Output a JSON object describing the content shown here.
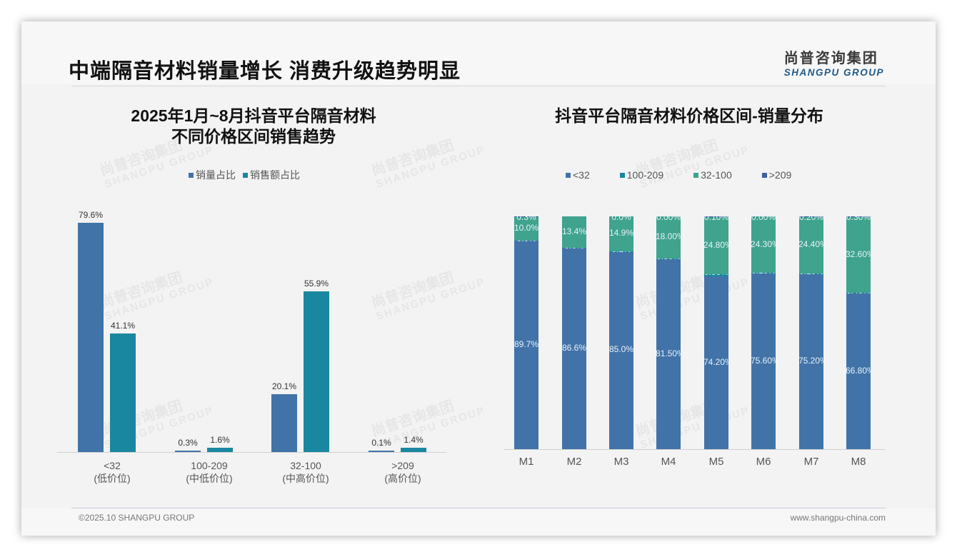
{
  "header": {
    "title": "中端隔音材料销量增长 消费升级趋势明显",
    "logo_cn": "尚普咨询集团",
    "logo_en": "SHANGPU GROUP"
  },
  "footer": {
    "left": "©2025.10 SHANGPU GROUP",
    "right": "www.shangpu-china.com"
  },
  "watermark": {
    "cn": "尚普咨询集团",
    "en": "SHANGPU GROUP"
  },
  "colors": {
    "blue": "#4173a8",
    "teal": "#1a87a0",
    "green": "#3fa38d",
    "navy": "#3e5fa0"
  },
  "chart_data": [
    {
      "type": "bar",
      "title": "2025年1月~8月抖音平台隔音材料 不同价格区间销售趋势",
      "title_lines": [
        "2025年1月~8月抖音平台隔音材料",
        "不同价格区间销售趋势"
      ],
      "categories": [
        "<32",
        "100-209",
        "32-100",
        ">209"
      ],
      "category_sublabels": [
        "(低价位)",
        "(中低价位)",
        "(中高价位)",
        "(高价位)"
      ],
      "series": [
        {
          "name": "销量占比",
          "values": [
            79.6,
            0.3,
            20.1,
            0.1
          ],
          "labels": [
            "79.6%",
            "0.3%",
            "20.1%",
            "0.1%"
          ],
          "color": "#4173a8"
        },
        {
          "name": "销售额占比",
          "values": [
            41.1,
            1.6,
            55.9,
            1.4
          ],
          "labels": [
            "41.1%",
            "1.6%",
            "55.9%",
            "1.4%"
          ],
          "color": "#1a87a0"
        }
      ],
      "legend_position": "top",
      "grid": false,
      "ylim": [
        0,
        80
      ]
    },
    {
      "type": "bar",
      "stacked": true,
      "title": "抖音平台隔音材料价格区间-销量分布",
      "categories": [
        "M1",
        "M2",
        "M3",
        "M4",
        "M5",
        "M6",
        "M7",
        "M8"
      ],
      "series": [
        {
          "name": "<32",
          "values": [
            89.7,
            86.6,
            85.0,
            81.5,
            74.2,
            75.6,
            75.2,
            66.8
          ],
          "labels": [
            "89.7%",
            "86.6%",
            "85.0%",
            "81.50%",
            "74.20%",
            "75.60%",
            "75.20%",
            "66.80%"
          ],
          "color": "#4173a8"
        },
        {
          "name": "100-209",
          "values": [
            0.0,
            0.0,
            0.1,
            0.5,
            0.9,
            0.1,
            0.1,
            0.4
          ],
          "labels": [
            "0.0%",
            "0.0%",
            "0.1%",
            "0.50%",
            "0.90%",
            "0.10%",
            "0.10%",
            "0.40%"
          ],
          "color": "#1a87a0"
        },
        {
          "name": "32-100",
          "values": [
            10.0,
            13.4,
            14.9,
            18.0,
            24.8,
            24.3,
            24.4,
            32.6
          ],
          "labels": [
            "10.0%",
            "13.4%",
            "14.9%",
            "18.00%",
            "24.80%",
            "24.30%",
            "24.40%",
            "32.60%"
          ],
          "color": "#3fa38d"
        },
        {
          "name": ">209",
          "values": [
            0.3,
            0.0,
            0.0,
            0.0,
            0.1,
            0.0,
            0.2,
            0.3
          ],
          "labels": [
            "0.3%",
            "",
            "0.0%",
            "0.00%",
            "0.10%",
            "0.00%",
            "0.20%",
            "0.30%"
          ],
          "color": "#3e5fa0"
        }
      ],
      "legend_position": "top",
      "grid": false,
      "ylim": [
        0,
        100
      ]
    }
  ]
}
